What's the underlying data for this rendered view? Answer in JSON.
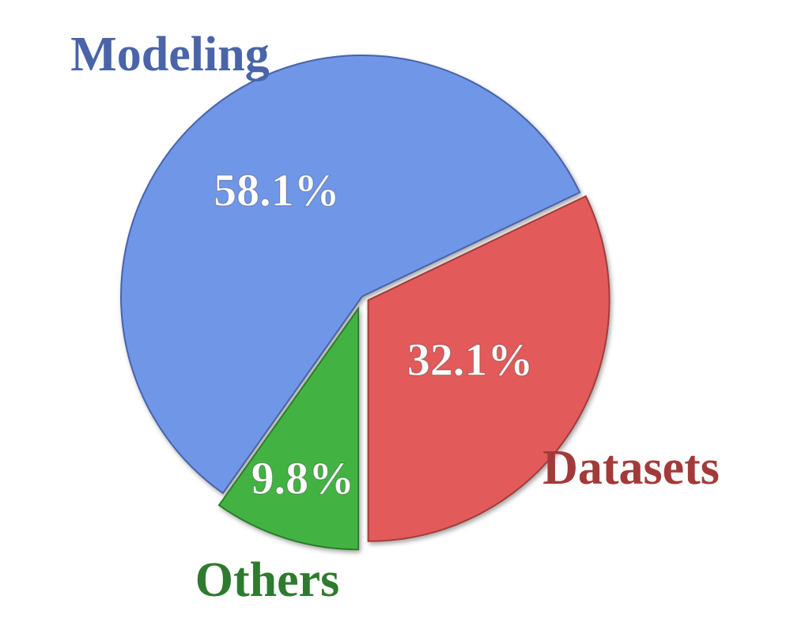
{
  "chart_data": {
    "type": "pie",
    "categories": [
      "Modeling",
      "Datasets",
      "Others"
    ],
    "values": [
      58.1,
      32.1,
      9.8
    ],
    "value_labels": [
      "58.1%",
      "32.1%",
      "9.8%"
    ],
    "colors": [
      "#6f96e8",
      "#e35a5a",
      "#42b342"
    ],
    "label_colors": [
      "#4a64a8",
      "#a33a3a",
      "#2e7a2e"
    ]
  }
}
